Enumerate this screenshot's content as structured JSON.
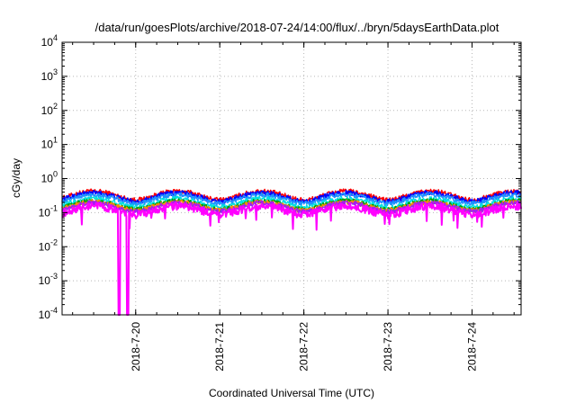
{
  "chart_data": {
    "type": "line",
    "title": "/data/run/goesPlots/archive/2018-07-24/14:00/flux/../bryn/5daysEarthData.plot",
    "xlabel": "Coordinated Universal Time (UTC)",
    "ylabel": "cGy/day",
    "yscale": "log",
    "ylim": [
      0.0001,
      10000
    ],
    "xlim": [
      "2018-07-19T03:00",
      "2018-07-24T14:00"
    ],
    "grid": true,
    "legend": "none",
    "y_ticks": [
      {
        "value": 10000,
        "base": "10",
        "exp": "4"
      },
      {
        "value": 1000,
        "base": "10",
        "exp": "3"
      },
      {
        "value": 100,
        "base": "10",
        "exp": "2"
      },
      {
        "value": 10,
        "base": "10",
        "exp": "1"
      },
      {
        "value": 1,
        "base": "10",
        "exp": "0"
      },
      {
        "value": 0.1,
        "base": "10",
        "exp": "-1"
      },
      {
        "value": 0.01,
        "base": "10",
        "exp": "-2"
      },
      {
        "value": 0.001,
        "base": "10",
        "exp": "-3"
      },
      {
        "value": 0.0001,
        "base": "10",
        "exp": "-4"
      }
    ],
    "x_ticks": [
      "2018-7-20",
      "2018-7-21",
      "2018-7-22",
      "2018-7-23",
      "2018-7-24"
    ],
    "x_tick_times": [
      "2018-07-20T00:00",
      "2018-07-21T00:00",
      "2018-07-22T00:00",
      "2018-07-23T00:00",
      "2018-07-24T00:00"
    ],
    "series": [
      {
        "color": "#ff0000",
        "level": 0.33
      },
      {
        "color": "#0000ff",
        "level": 0.3
      },
      {
        "color": "#1e90ff",
        "level": 0.26
      },
      {
        "color": "#00e0e0",
        "level": 0.2
      },
      {
        "color": "#00a000",
        "level": 0.17
      },
      {
        "color": "#ff8c00",
        "level": 0.16
      },
      {
        "color": "#a020f0",
        "level": 0.15
      },
      {
        "color": "#ff00ff",
        "level": 0.12
      }
    ],
    "dropouts": [
      {
        "start": "2018-07-19T19:05",
        "end": "2018-07-19T19:35"
      },
      {
        "start": "2018-07-19T21:30",
        "end": "2018-07-19T22:00"
      }
    ]
  }
}
